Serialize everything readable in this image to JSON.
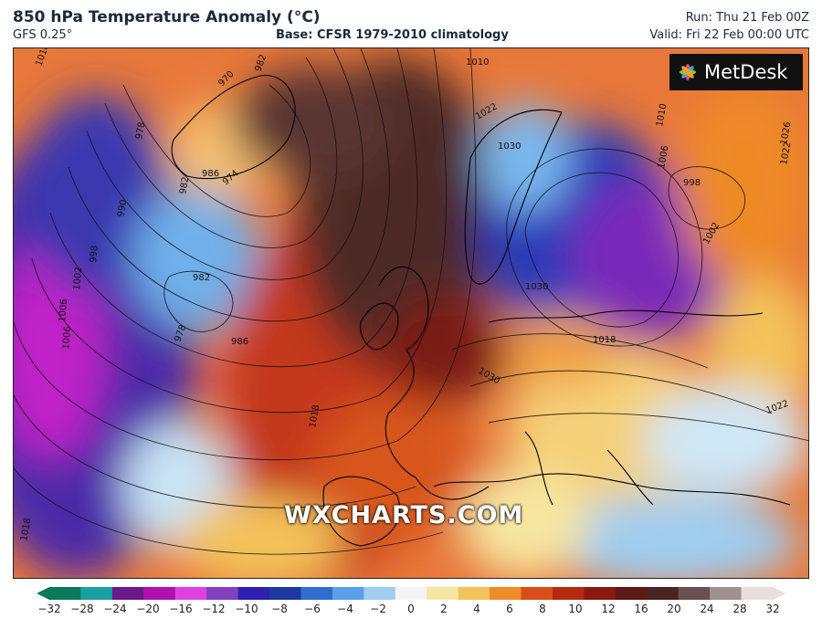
{
  "header": {
    "title": "850 hPa Temperature Anomaly (°C)",
    "model": "GFS 0.25°",
    "base": "Base: CFSR 1979-2010 climatology",
    "run": "Run: Thu 21 Feb 00Z",
    "valid": "Valid: Fri 22 Feb 00:00 UTC"
  },
  "logo": {
    "text": "MetDesk"
  },
  "watermark": "WXCHARTS.COM",
  "isobar_labels": [
    "1010",
    "1010",
    "982",
    "970",
    "978",
    "982",
    "986",
    "974",
    "990",
    "998",
    "1002",
    "1006",
    "1006",
    "982",
    "978",
    "986",
    "1018",
    "1022",
    "1030",
    "1030",
    "1010",
    "1006",
    "998",
    "1002",
    "1018",
    "1030",
    "1022",
    "1026",
    "1022",
    "1018"
  ],
  "colorbar": {
    "ticks": [
      "−32",
      "−28",
      "−24",
      "−20",
      "−16",
      "−12",
      "−10",
      "−8",
      "−6",
      "−4",
      "−2",
      "0",
      "2",
      "4",
      "6",
      "8",
      "10",
      "12",
      "16",
      "20",
      "24",
      "28",
      "32"
    ],
    "colors": [
      "#0a7a5a",
      "#1aa0a0",
      "#6a1a8a",
      "#b010b0",
      "#e040e0",
      "#8040c0",
      "#3020b0",
      "#1c3aa0",
      "#2f6ed0",
      "#5aa0e8",
      "#a0cdf2",
      "#f4f4f4",
      "#f6e6a0",
      "#f3c25a",
      "#ee8a28",
      "#d94e16",
      "#b42a10",
      "#8a1a10",
      "#5e1a14",
      "#4a2420",
      "#6a5050",
      "#a09090",
      "#e8dede"
    ]
  }
}
